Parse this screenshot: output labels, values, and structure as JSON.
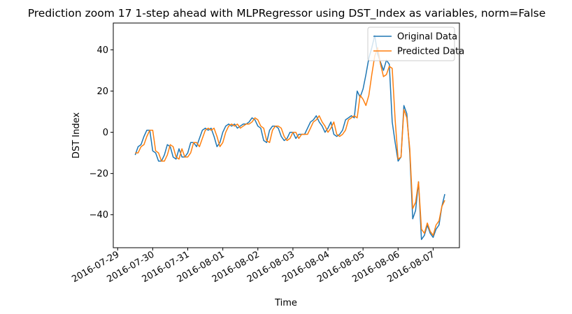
{
  "chart_data": {
    "type": "line",
    "title": "Prediction zoom 17 1-step ahead with MLPRegressor using DST_Index as variables, norm=False",
    "xlabel": "Time",
    "ylabel": "DST Index",
    "xlim": [
      "2016-07-28T21:00",
      "2016-08-07T18:00"
    ],
    "ylim": [
      -56,
      53
    ],
    "x_ticks": [
      "2016-07-29",
      "2016-07-30",
      "2016-07-31",
      "2016-08-01",
      "2016-08-02",
      "2016-08-03",
      "2016-08-04",
      "2016-08-05",
      "2016-08-06",
      "2016-08-07"
    ],
    "y_ticks": [
      40,
      20,
      0,
      -20,
      -40
    ],
    "y_tick_labels": [
      "40",
      "20",
      "0",
      "−20",
      "−40"
    ],
    "legend": {
      "location": "upper right"
    },
    "series": [
      {
        "name": "Original Data",
        "color": "#1f77b4",
        "points": [
          [
            "2016-07-29T12:00",
            -11
          ],
          [
            "2016-07-29T14:00",
            -7
          ],
          [
            "2016-07-29T16:00",
            -6
          ],
          [
            "2016-07-29T18:00",
            -2
          ],
          [
            "2016-07-29T20:00",
            1
          ],
          [
            "2016-07-29T22:00",
            1
          ],
          [
            "2016-07-30T00:00",
            -9
          ],
          [
            "2016-07-30T02:00",
            -10
          ],
          [
            "2016-07-30T04:00",
            -14
          ],
          [
            "2016-07-30T06:00",
            -14
          ],
          [
            "2016-07-30T08:00",
            -11
          ],
          [
            "2016-07-30T10:00",
            -6
          ],
          [
            "2016-07-30T12:00",
            -7
          ],
          [
            "2016-07-30T14:00",
            -12
          ],
          [
            "2016-07-30T16:00",
            -13
          ],
          [
            "2016-07-30T18:00",
            -8
          ],
          [
            "2016-07-30T20:00",
            -12
          ],
          [
            "2016-07-30T22:00",
            -12
          ],
          [
            "2016-07-31T00:00",
            -10
          ],
          [
            "2016-07-31T02:00",
            -5
          ],
          [
            "2016-07-31T04:00",
            -5
          ],
          [
            "2016-07-31T06:00",
            -7
          ],
          [
            "2016-07-31T08:00",
            -3
          ],
          [
            "2016-07-31T10:00",
            1
          ],
          [
            "2016-07-31T12:00",
            2
          ],
          [
            "2016-07-31T14:00",
            1
          ],
          [
            "2016-07-31T16:00",
            2
          ],
          [
            "2016-07-31T18:00",
            -2
          ],
          [
            "2016-07-31T20:00",
            -7
          ],
          [
            "2016-07-31T22:00",
            -5
          ],
          [
            "2016-08-01T00:00",
            0
          ],
          [
            "2016-08-01T02:00",
            3
          ],
          [
            "2016-08-01T04:00",
            4
          ],
          [
            "2016-08-01T06:00",
            3
          ],
          [
            "2016-08-01T08:00",
            4
          ],
          [
            "2016-08-01T10:00",
            2
          ],
          [
            "2016-08-01T12:00",
            3
          ],
          [
            "2016-08-01T14:00",
            4
          ],
          [
            "2016-08-01T16:00",
            4
          ],
          [
            "2016-08-01T18:00",
            5
          ],
          [
            "2016-08-01T20:00",
            7
          ],
          [
            "2016-08-01T22:00",
            6
          ],
          [
            "2016-08-02T00:00",
            3
          ],
          [
            "2016-08-02T02:00",
            2
          ],
          [
            "2016-08-02T04:00",
            -4
          ],
          [
            "2016-08-02T06:00",
            -5
          ],
          [
            "2016-08-02T08:00",
            1
          ],
          [
            "2016-08-02T10:00",
            3
          ],
          [
            "2016-08-02T12:00",
            3
          ],
          [
            "2016-08-02T14:00",
            2
          ],
          [
            "2016-08-02T16:00",
            -2
          ],
          [
            "2016-08-02T18:00",
            -4
          ],
          [
            "2016-08-02T20:00",
            -3
          ],
          [
            "2016-08-02T22:00",
            0
          ],
          [
            "2016-08-03T00:00",
            0
          ],
          [
            "2016-08-03T02:00",
            -3
          ],
          [
            "2016-08-03T04:00",
            -1
          ],
          [
            "2016-08-03T06:00",
            -1
          ],
          [
            "2016-08-03T08:00",
            -1
          ],
          [
            "2016-08-03T10:00",
            2
          ],
          [
            "2016-08-03T12:00",
            5
          ],
          [
            "2016-08-03T14:00",
            6
          ],
          [
            "2016-08-03T16:00",
            8
          ],
          [
            "2016-08-03T18:00",
            5
          ],
          [
            "2016-08-03T20:00",
            3
          ],
          [
            "2016-08-03T22:00",
            0
          ],
          [
            "2016-08-04T00:00",
            2
          ],
          [
            "2016-08-04T02:00",
            5
          ],
          [
            "2016-08-04T04:00",
            -1
          ],
          [
            "2016-08-04T06:00",
            -2
          ],
          [
            "2016-08-04T08:00",
            -1
          ],
          [
            "2016-08-04T10:00",
            1
          ],
          [
            "2016-08-04T12:00",
            6
          ],
          [
            "2016-08-04T14:00",
            7
          ],
          [
            "2016-08-04T16:00",
            8
          ],
          [
            "2016-08-04T18:00",
            7
          ],
          [
            "2016-08-04T20:00",
            20
          ],
          [
            "2016-08-04T22:00",
            17
          ],
          [
            "2016-08-05T00:00",
            21
          ],
          [
            "2016-08-05T02:00",
            28
          ],
          [
            "2016-08-05T04:00",
            36
          ],
          [
            "2016-08-05T06:00",
            41
          ],
          [
            "2016-08-05T08:00",
            47
          ],
          [
            "2016-08-05T10:00",
            38
          ],
          [
            "2016-08-05T12:00",
            34
          ],
          [
            "2016-08-05T14:00",
            30
          ],
          [
            "2016-08-05T16:00",
            35
          ],
          [
            "2016-08-05T18:00",
            33
          ],
          [
            "2016-08-05T20:00",
            5
          ],
          [
            "2016-08-05T22:00",
            -5
          ],
          [
            "2016-08-06T00:00",
            -14
          ],
          [
            "2016-08-06T02:00",
            -12
          ],
          [
            "2016-08-06T04:00",
            13
          ],
          [
            "2016-08-06T06:00",
            9
          ],
          [
            "2016-08-06T08:00",
            -10
          ],
          [
            "2016-08-06T10:00",
            -42
          ],
          [
            "2016-08-06T12:00",
            -38
          ],
          [
            "2016-08-06T14:00",
            -24
          ],
          [
            "2016-08-06T16:00",
            -52
          ],
          [
            "2016-08-06T18:00",
            -50
          ],
          [
            "2016-08-06T20:00",
            -45
          ],
          [
            "2016-08-06T22:00",
            -49
          ],
          [
            "2016-08-07T00:00",
            -51
          ],
          [
            "2016-08-07T02:00",
            -47
          ],
          [
            "2016-08-07T04:00",
            -45
          ],
          [
            "2016-08-07T06:00",
            -36
          ],
          [
            "2016-08-07T08:00",
            -30
          ]
        ]
      },
      {
        "name": "Predicted Data",
        "color": "#ff7f0e",
        "points": [
          [
            "2016-07-29T12:00",
            -10
          ],
          [
            "2016-07-29T14:00",
            -10
          ],
          [
            "2016-07-29T16:00",
            -7
          ],
          [
            "2016-07-29T18:00",
            -6
          ],
          [
            "2016-07-29T20:00",
            -2
          ],
          [
            "2016-07-29T22:00",
            1
          ],
          [
            "2016-07-30T00:00",
            1
          ],
          [
            "2016-07-30T02:00",
            -9
          ],
          [
            "2016-07-30T04:00",
            -10
          ],
          [
            "2016-07-30T06:00",
            -14
          ],
          [
            "2016-07-30T08:00",
            -14
          ],
          [
            "2016-07-30T10:00",
            -11
          ],
          [
            "2016-07-30T12:00",
            -6
          ],
          [
            "2016-07-30T14:00",
            -7
          ],
          [
            "2016-07-30T16:00",
            -12
          ],
          [
            "2016-07-30T18:00",
            -13
          ],
          [
            "2016-07-30T20:00",
            -8
          ],
          [
            "2016-07-30T22:00",
            -12
          ],
          [
            "2016-07-31T00:00",
            -12
          ],
          [
            "2016-07-31T02:00",
            -10
          ],
          [
            "2016-07-31T04:00",
            -5
          ],
          [
            "2016-07-31T06:00",
            -5
          ],
          [
            "2016-07-31T08:00",
            -7
          ],
          [
            "2016-07-31T10:00",
            -3
          ],
          [
            "2016-07-31T12:00",
            1
          ],
          [
            "2016-07-31T14:00",
            2
          ],
          [
            "2016-07-31T16:00",
            1
          ],
          [
            "2016-07-31T18:00",
            2
          ],
          [
            "2016-07-31T20:00",
            -2
          ],
          [
            "2016-07-31T22:00",
            -7
          ],
          [
            "2016-08-01T00:00",
            -5
          ],
          [
            "2016-08-01T02:00",
            0
          ],
          [
            "2016-08-01T04:00",
            3
          ],
          [
            "2016-08-01T06:00",
            4
          ],
          [
            "2016-08-01T08:00",
            3
          ],
          [
            "2016-08-01T10:00",
            4
          ],
          [
            "2016-08-01T12:00",
            2
          ],
          [
            "2016-08-01T14:00",
            3
          ],
          [
            "2016-08-01T16:00",
            4
          ],
          [
            "2016-08-01T18:00",
            4
          ],
          [
            "2016-08-01T20:00",
            5
          ],
          [
            "2016-08-01T22:00",
            7
          ],
          [
            "2016-08-02T00:00",
            6
          ],
          [
            "2016-08-02T02:00",
            3
          ],
          [
            "2016-08-02T04:00",
            2
          ],
          [
            "2016-08-02T06:00",
            -4
          ],
          [
            "2016-08-02T08:00",
            -5
          ],
          [
            "2016-08-02T10:00",
            1
          ],
          [
            "2016-08-02T12:00",
            3
          ],
          [
            "2016-08-02T14:00",
            3
          ],
          [
            "2016-08-02T16:00",
            2
          ],
          [
            "2016-08-02T18:00",
            -2
          ],
          [
            "2016-08-02T20:00",
            -4
          ],
          [
            "2016-08-02T22:00",
            -3
          ],
          [
            "2016-08-03T00:00",
            0
          ],
          [
            "2016-08-03T02:00",
            0
          ],
          [
            "2016-08-03T04:00",
            -3
          ],
          [
            "2016-08-03T06:00",
            -1
          ],
          [
            "2016-08-03T08:00",
            -1
          ],
          [
            "2016-08-03T10:00",
            -1
          ],
          [
            "2016-08-03T12:00",
            2
          ],
          [
            "2016-08-03T14:00",
            5
          ],
          [
            "2016-08-03T16:00",
            6
          ],
          [
            "2016-08-03T18:00",
            8
          ],
          [
            "2016-08-03T20:00",
            5
          ],
          [
            "2016-08-03T22:00",
            3
          ],
          [
            "2016-08-04T00:00",
            0
          ],
          [
            "2016-08-04T02:00",
            2
          ],
          [
            "2016-08-04T04:00",
            5
          ],
          [
            "2016-08-04T06:00",
            -1
          ],
          [
            "2016-08-04T08:00",
            -2
          ],
          [
            "2016-08-04T10:00",
            -1
          ],
          [
            "2016-08-04T12:00",
            1
          ],
          [
            "2016-08-04T14:00",
            6
          ],
          [
            "2016-08-04T16:00",
            7
          ],
          [
            "2016-08-04T18:00",
            8
          ],
          [
            "2016-08-04T20:00",
            7
          ],
          [
            "2016-08-04T22:00",
            18
          ],
          [
            "2016-08-05T00:00",
            16
          ],
          [
            "2016-08-05T02:00",
            13
          ],
          [
            "2016-08-05T04:00",
            18
          ],
          [
            "2016-08-05T06:00",
            28
          ],
          [
            "2016-08-05T08:00",
            37
          ],
          [
            "2016-08-05T10:00",
            41
          ],
          [
            "2016-08-05T12:00",
            33
          ],
          [
            "2016-08-05T14:00",
            27
          ],
          [
            "2016-08-05T16:00",
            28
          ],
          [
            "2016-08-05T18:00",
            32
          ],
          [
            "2016-08-05T20:00",
            31
          ],
          [
            "2016-08-05T22:00",
            6
          ],
          [
            "2016-08-06T00:00",
            -13
          ],
          [
            "2016-08-06T02:00",
            -12
          ],
          [
            "2016-08-06T04:00",
            11
          ],
          [
            "2016-08-06T06:00",
            7
          ],
          [
            "2016-08-06T08:00",
            -8
          ],
          [
            "2016-08-06T10:00",
            -37
          ],
          [
            "2016-08-06T12:00",
            -34
          ],
          [
            "2016-08-06T14:00",
            -24
          ],
          [
            "2016-08-06T16:00",
            -47
          ],
          [
            "2016-08-06T18:00",
            -49
          ],
          [
            "2016-08-06T20:00",
            -44
          ],
          [
            "2016-08-06T22:00",
            -48
          ],
          [
            "2016-08-07T00:00",
            -50
          ],
          [
            "2016-08-07T02:00",
            -45
          ],
          [
            "2016-08-07T04:00",
            -43
          ],
          [
            "2016-08-07T06:00",
            -36
          ],
          [
            "2016-08-07T08:00",
            -33
          ]
        ]
      }
    ]
  }
}
